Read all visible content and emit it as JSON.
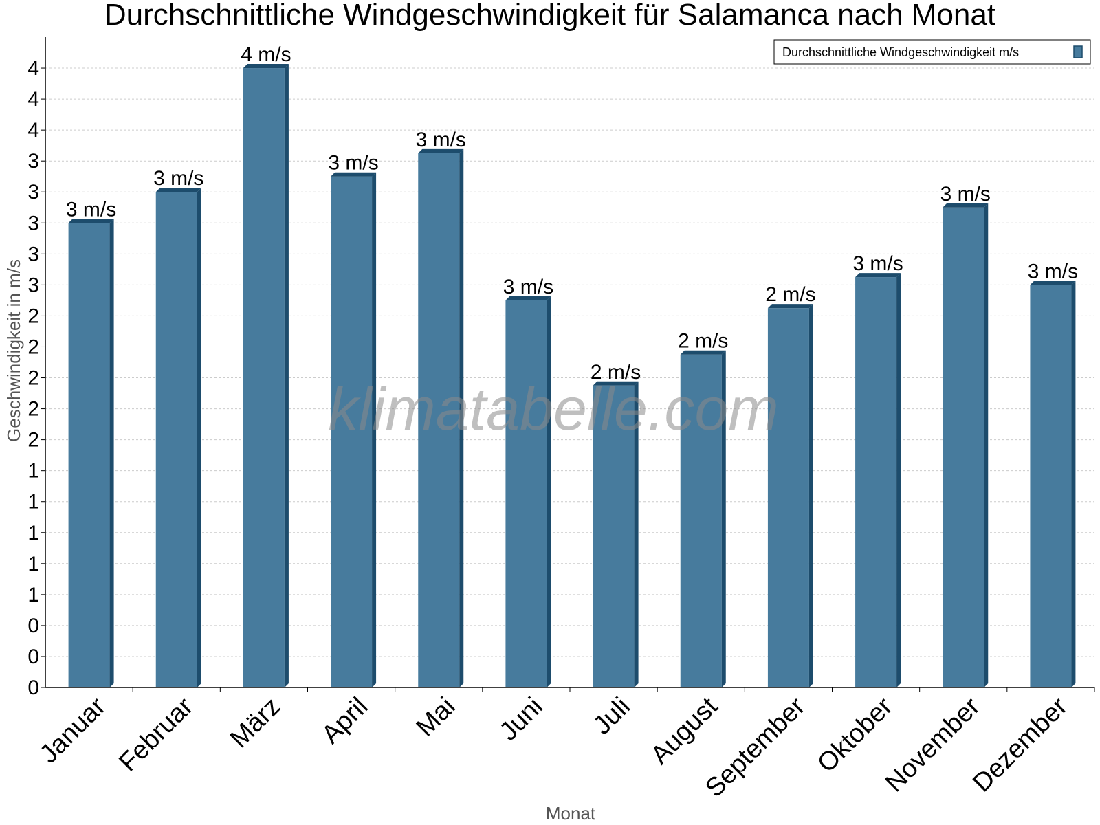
{
  "chart_data": {
    "type": "bar",
    "title": "Durchschnittliche Windgeschwindigkeit für Salamanca nach Monat",
    "xlabel": "Monat",
    "ylabel": "Geschwindigkeit in m/s",
    "categories": [
      "Januar",
      "Februar",
      "März",
      "April",
      "Mai",
      "Juni",
      "Juli",
      "August",
      "September",
      "Oktober",
      "November",
      "Dezember"
    ],
    "series": [
      {
        "name": "Durchschnittliche Windgeschwindigkeit m/s",
        "values": [
          3.0,
          3.2,
          4.0,
          3.3,
          3.45,
          2.5,
          1.95,
          2.15,
          2.45,
          2.65,
          3.1,
          2.6
        ],
        "labels": [
          "3 m/s",
          "3 m/s",
          "4 m/s",
          "3 m/s",
          "3 m/s",
          "3 m/s",
          "2 m/s",
          "2 m/s",
          "2 m/s",
          "3 m/s",
          "3 m/s",
          "3 m/s"
        ]
      }
    ],
    "ylim": [
      0,
      4.2
    ],
    "yticks": [
      0,
      0.2,
      0.4,
      0.6,
      0.8,
      1.0,
      1.2,
      1.4,
      1.6,
      1.8,
      2.0,
      2.2,
      2.4,
      2.6,
      2.8,
      3.0,
      3.2,
      3.4,
      3.6,
      3.8,
      4.0
    ],
    "ytick_labels": [
      "0",
      "0",
      "0",
      "1",
      "1",
      "1",
      "1",
      "1",
      "2",
      "2",
      "2",
      "2",
      "2",
      "3",
      "3",
      "3",
      "3",
      "3",
      "4",
      "4",
      "4"
    ],
    "grid": true,
    "legend_position": "top-right",
    "colors": {
      "bar": "#477b9d",
      "bar_side": "#1d4c6c",
      "bar_top": "#1d4c6c",
      "grid": "#cccccc"
    },
    "watermark": "klimatabelle.com"
  }
}
